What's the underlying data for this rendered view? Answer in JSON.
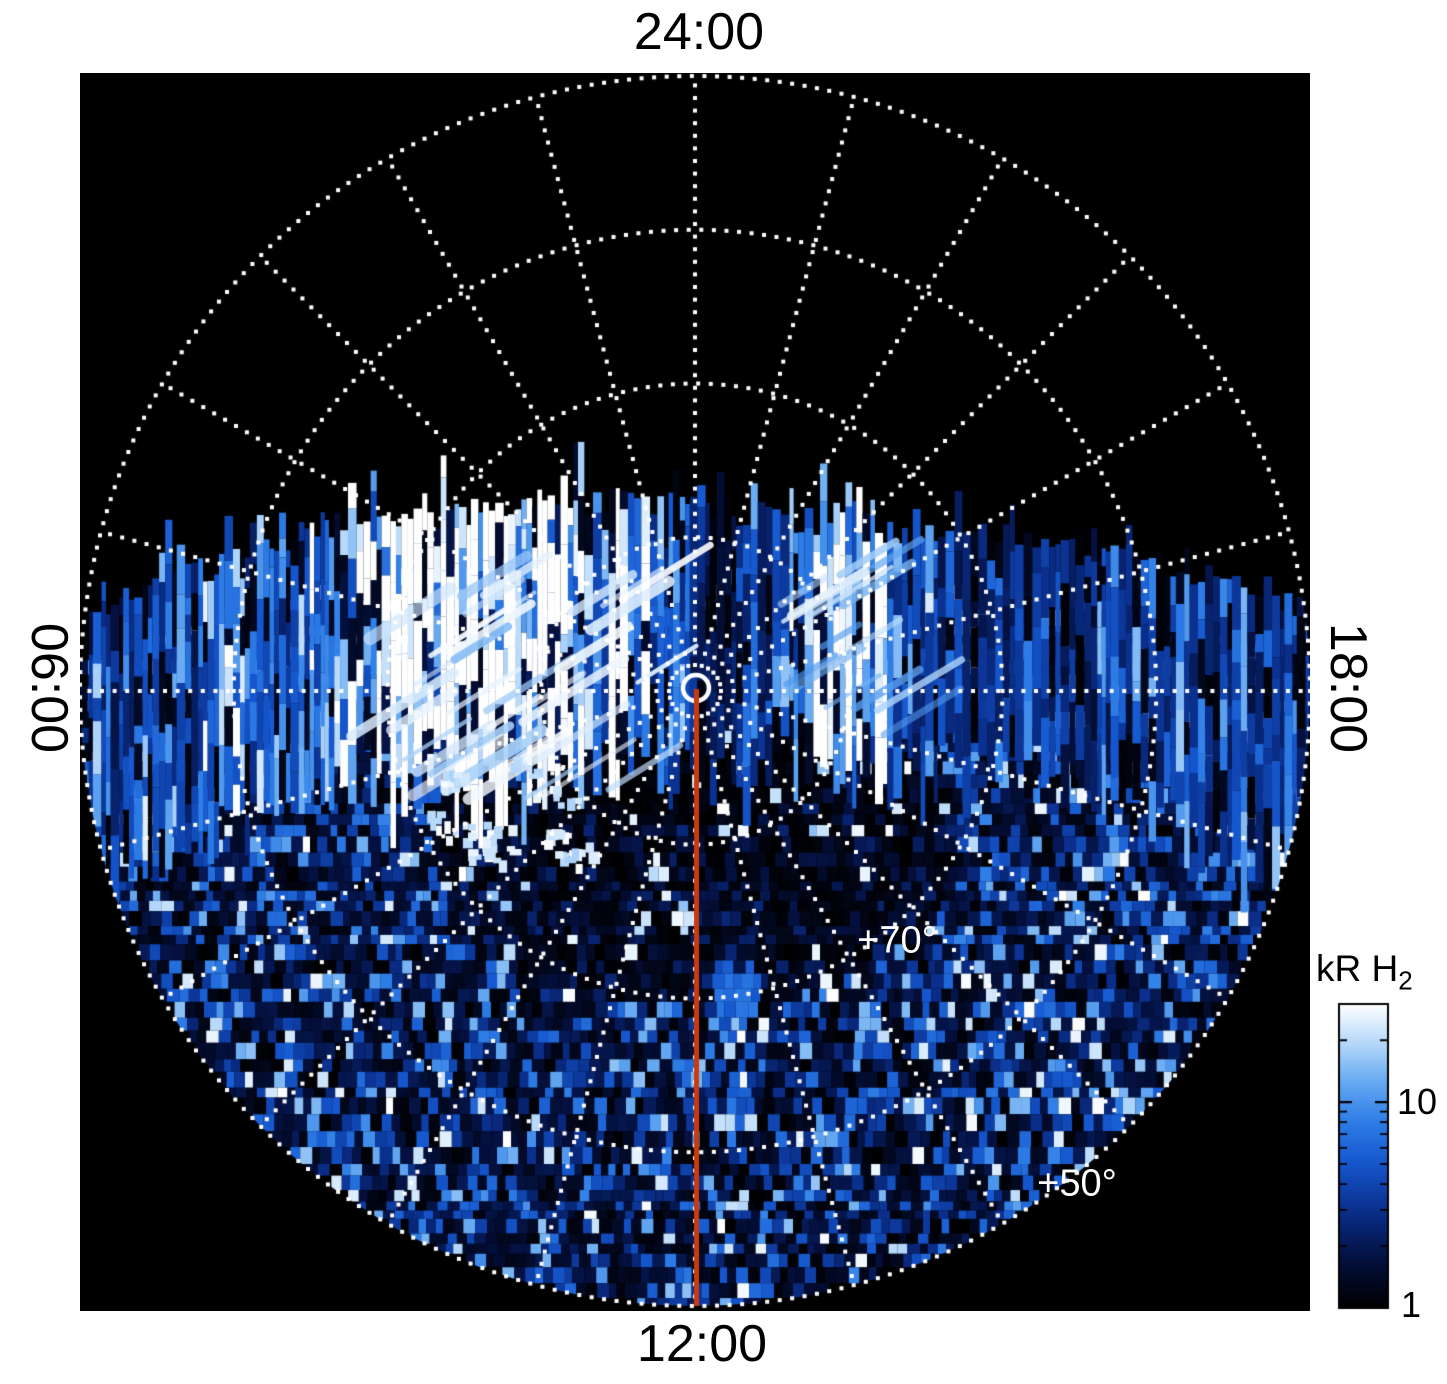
{
  "time_labels": {
    "top": "24:00",
    "bottom": "12:00",
    "left": "06:00",
    "right": "18:00"
  },
  "latitude_labels": [
    {
      "text": "+70°"
    },
    {
      "text": "+50°"
    }
  ],
  "colorbar": {
    "title_main": "kR H",
    "title_sub": "2",
    "tick_labels": [
      "10",
      "1"
    ]
  },
  "colors": {
    "background": "#ffffff",
    "plot_background": "#000000",
    "grid": "#ffffff",
    "text": "#000000",
    "latitude_label": "#ffffff",
    "red_line": "#cb3a0e",
    "center_ring": "#ffffff",
    "palette": [
      [
        0.0,
        "#000000"
      ],
      [
        0.16,
        "#04103e"
      ],
      [
        0.32,
        "#0a2f8c"
      ],
      [
        0.48,
        "#1557ce"
      ],
      [
        0.62,
        "#2f7fe8"
      ],
      [
        0.75,
        "#6aacf2"
      ],
      [
        0.87,
        "#b5d8fa"
      ],
      [
        1.0,
        "#ffffff"
      ]
    ]
  },
  "chart_data": {
    "type": "heatmap",
    "projection": "polar-local-time",
    "quantity": "H2 auroral emission brightness",
    "units": "kR H2",
    "pole_at_center_latitude_deg": 90,
    "local_time_ticks": {
      "top": "24:00",
      "left": "06:00",
      "bottom": "12:00",
      "right": "18:00"
    },
    "grid": {
      "style": "dotted-white",
      "latitude_circles_deg": [
        80,
        70,
        60,
        50
      ],
      "outer_circle_latitude_deg": 50,
      "spoke_interval_hours": 1,
      "labeled_circles": [
        "+70°",
        "+50°"
      ]
    },
    "colorbar": {
      "title": "kR H2",
      "scale": "log",
      "range_kR": [
        1,
        30
      ],
      "labeled_ticks_kR": [
        10,
        1
      ],
      "minor_ticks_kR": [
        2,
        3,
        4,
        5,
        6,
        7,
        8,
        9,
        20,
        30
      ]
    },
    "markers": {
      "center_marker": "white ring at the pole",
      "red_meridian_line": "solid red-orange line from the pole toward 12:00 local time"
    },
    "coverage": {
      "description": "Emission data fills the dayside (lower) part of the disc from ~06:00 through 12:00 to ~18:00 local time; the nightside upper region is black (no data) with only the dotted grid visible.",
      "poleward_boundary": "ragged boundary of vertical streaks slightly poleward of the 06:00-18:00 line"
    },
    "features": [
      {
        "name": "bright auroral arc",
        "approx_local_time": "09:00-11:00",
        "approx_latitude_deg": "60-78",
        "appearance": "saturated white patch with diagonal striations reaching the color-scale maximum"
      },
      {
        "name": "secondary bright patches",
        "approx_local_time": "13:00-15:00",
        "approx_latitude_deg": "62-78",
        "appearance": "light-blue / white vertical streaks"
      },
      {
        "name": "smearing fringe",
        "appearance": "vertical blue streaks of varying length along the poleward data boundary"
      },
      {
        "name": "dark crescent",
        "approx_latitude_deg": "75-88 dayside",
        "appearance": "darker region just equatorward of the pole"
      },
      {
        "name": "background speckle",
        "appearance": "random mottling of dark navy, mid blue and white cells (~1-10 kR) over the rest of the dayside disc"
      }
    ]
  }
}
